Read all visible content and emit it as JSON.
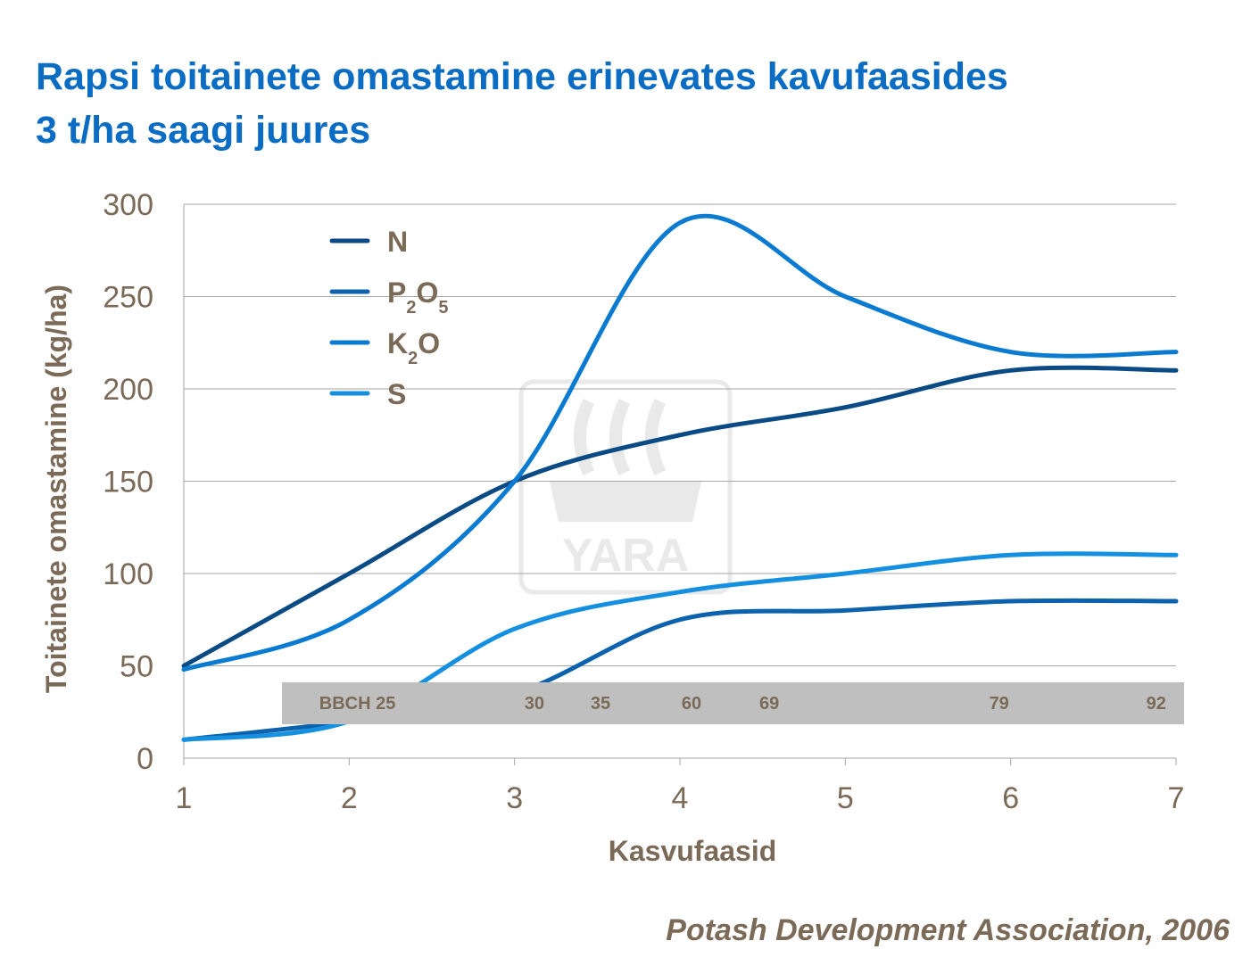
{
  "title_line1": "Rapsi toitainete omastamine erinevates kavufaasides",
  "title_line2": "3 t/ha saagi juures",
  "source": "Potash Development Association, 2006",
  "watermark": "YARA",
  "chart_data": {
    "type": "line",
    "title": "Rapsi toitainete omastamine erinevates kavufaasides 3 t/ha saagi juures",
    "xlabel": "Kasvufaasid",
    "ylabel": "Toitainete omastamine (kg/ha)",
    "x": [
      1,
      2,
      3,
      4,
      5,
      6,
      7
    ],
    "xlim": [
      1,
      7
    ],
    "ylim": [
      0,
      300
    ],
    "yticks": [
      0,
      50,
      100,
      150,
      200,
      250,
      300
    ],
    "xticks": [
      1,
      2,
      3,
      4,
      5,
      6,
      7
    ],
    "grid": "horizontal",
    "legend_position": "top-left",
    "series": [
      {
        "name": "N",
        "label_parts": [
          [
            "N",
            ""
          ]
        ],
        "color": "#0a4a85",
        "values": [
          50,
          100,
          150,
          175,
          190,
          210,
          210
        ]
      },
      {
        "name": "P2O5",
        "label_parts": [
          [
            "P",
            ""
          ],
          [
            "2",
            "sub"
          ],
          [
            "O",
            ""
          ],
          [
            "5",
            "sub"
          ]
        ],
        "color": "#0c62ad",
        "values": [
          10,
          20,
          35,
          75,
          80,
          85,
          85
        ]
      },
      {
        "name": "K2O",
        "label_parts": [
          [
            "K",
            ""
          ],
          [
            "2",
            "sub"
          ],
          [
            "O",
            ""
          ]
        ],
        "color": "#0a7bd0",
        "values": [
          48,
          75,
          150,
          290,
          250,
          220,
          220
        ]
      },
      {
        "name": "S",
        "label_parts": [
          [
            "S",
            ""
          ]
        ],
        "color": "#1590e0",
        "values": [
          10,
          20,
          70,
          90,
          100,
          110,
          110
        ]
      }
    ],
    "bbch_band": {
      "color": "#bfbfbf",
      "labels": [
        {
          "text": "BBCH 25",
          "x": 2.05
        },
        {
          "text": "30",
          "x": 3.12
        },
        {
          "text": "35",
          "x": 3.52
        },
        {
          "text": "60",
          "x": 4.07
        },
        {
          "text": "69",
          "x": 4.54
        },
        {
          "text": "79",
          "x": 5.93
        },
        {
          "text": "92",
          "x": 6.88
        }
      ]
    }
  }
}
